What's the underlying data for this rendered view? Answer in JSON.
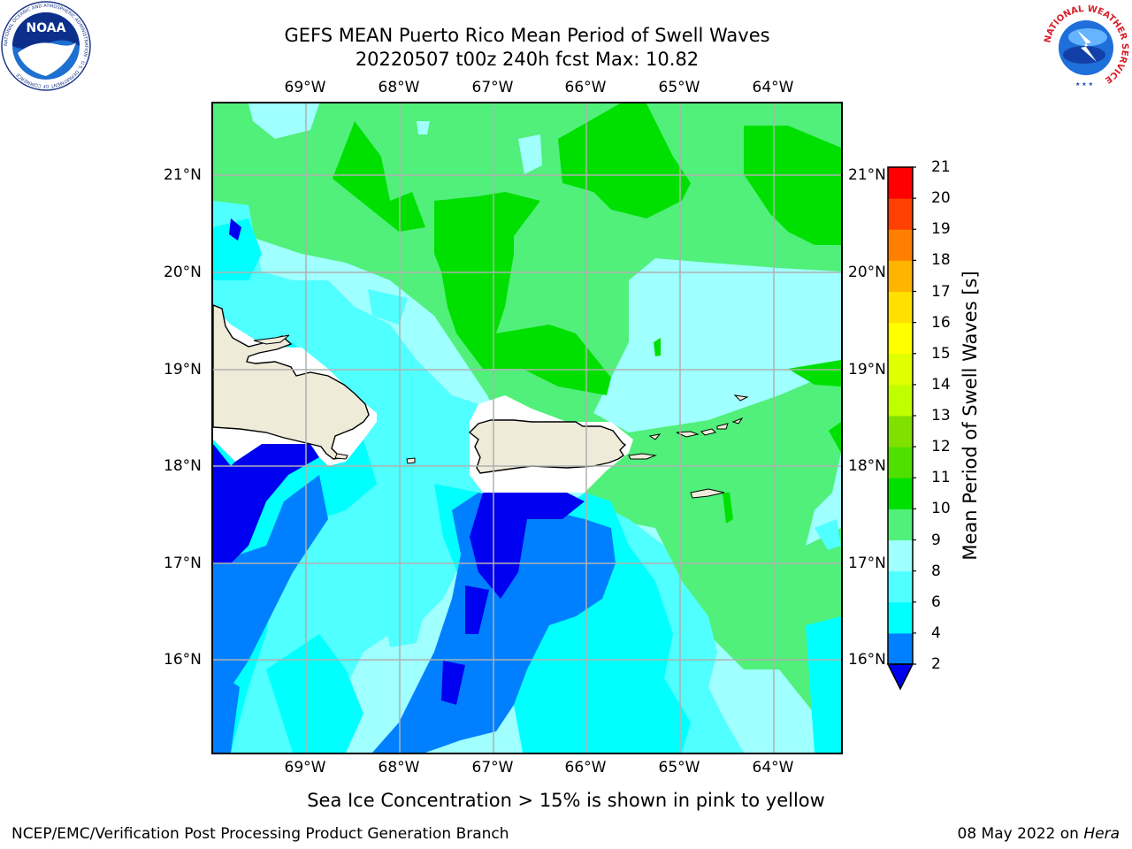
{
  "title": {
    "line1": "GEFS MEAN Puerto Rico Mean Period of Swell Waves",
    "line2": "20220507 t00z 240h fcst   Max: 10.82"
  },
  "axes": {
    "lon_labels": [
      "69°W",
      "68°W",
      "67°W",
      "66°W",
      "65°W",
      "64°W"
    ],
    "lon_values": [
      -69,
      -68,
      -67,
      -66,
      -65,
      -64
    ],
    "lat_labels": [
      "21°N",
      "20°N",
      "19°N",
      "18°N",
      "17°N",
      "16°N"
    ],
    "lat_values": [
      21,
      20,
      19,
      18,
      17,
      16
    ],
    "lon_range": [
      -70.0,
      -63.25
    ],
    "lat_range": [
      15.0,
      21.75
    ],
    "grid": true
  },
  "colorbar": {
    "title": "Mean Period of Swell Waves [s]",
    "ticks": [
      "2",
      "4",
      "6",
      "8",
      "9",
      "10",
      "11",
      "12",
      "13",
      "14",
      "15",
      "16",
      "17",
      "18",
      "19",
      "20",
      "21"
    ],
    "colors": [
      "#0000f0",
      "#0080ff",
      "#00ffff",
      "#50ffff",
      "#a0ffff",
      "#50f07a",
      "#00e000",
      "#50e000",
      "#80e000",
      "#c0ff00",
      "#e0ff00",
      "#ffff00",
      "#ffe000",
      "#ffb400",
      "#ff8000",
      "#ff4000",
      "#ff0000"
    ],
    "extend": "min"
  },
  "colors": {
    "land": "#eeebd9",
    "no_data": "#ffffff",
    "coast": "#000000",
    "grid": "#b0b0b0"
  },
  "footer": {
    "note": "Sea Ice Concentration > 15% is shown in pink to yellow",
    "left": "NCEP/EMC/Verification Post Processing Product Generation Branch",
    "right_prefix": "08 May 2022 on ",
    "right_em": "Hera"
  },
  "logos": {
    "noaa_text": "NOAA",
    "noaa_ring": "NATIONAL OCEANIC AND ATMOSPHERIC ADMINISTRATION · U.S. DEPARTMENT OF COMMERCE",
    "nws_ring": "NATIONAL WEATHER SERVICE"
  }
}
